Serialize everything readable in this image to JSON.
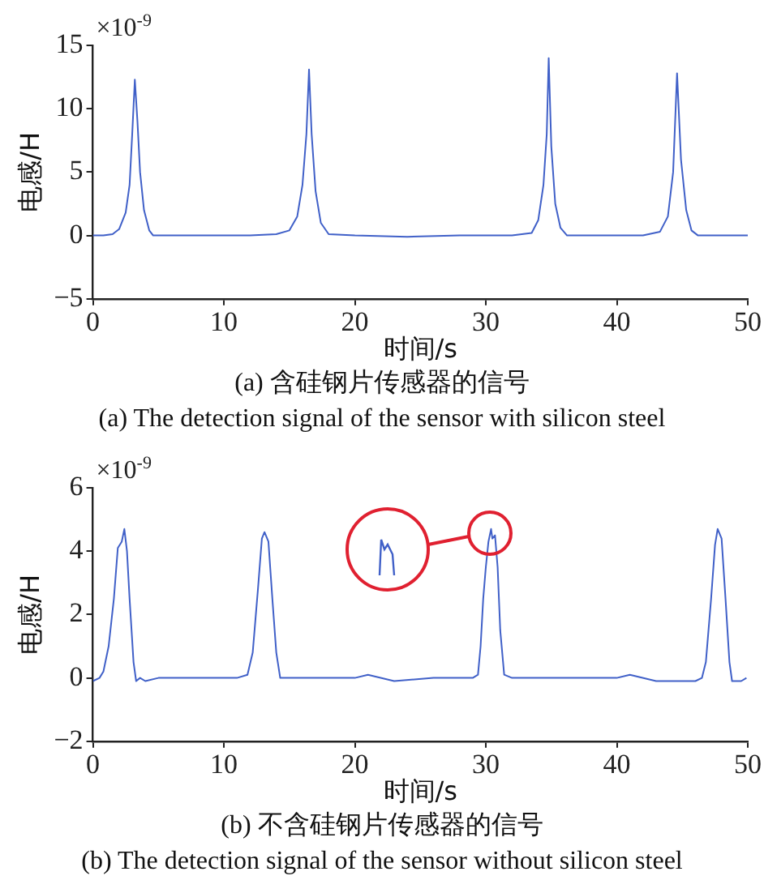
{
  "chart_data": [
    {
      "type": "line",
      "title": "(a) 含硅钢片传感器的信号",
      "subtitle": "(a) The detection signal of the sensor with silicon steel",
      "xlabel": "时间/s",
      "ylabel": "电感/H",
      "annotations": [
        "×10$^{-9}$"
      ],
      "xlim": [
        0,
        50
      ],
      "xticks": [
        0,
        10,
        20,
        30,
        40,
        50
      ],
      "ylim": [
        -5,
        15
      ],
      "yticks": [
        -5,
        0,
        5,
        10,
        15
      ],
      "grid": false,
      "legend": false,
      "marker": "none",
      "line_style": "solid",
      "series": [
        {
          "color": "#4060c8",
          "x": [
            0,
            0.8,
            1.5,
            2.0,
            2.5,
            2.8,
            3.0,
            3.2,
            3.4,
            3.6,
            3.9,
            4.3,
            4.6,
            6,
            8,
            10,
            12,
            14,
            15,
            15.6,
            16,
            16.3,
            16.5,
            16.7,
            17,
            17.4,
            18,
            20,
            24,
            28,
            32,
            33.5,
            34.0,
            34.4,
            34.65,
            34.8,
            35.0,
            35.3,
            35.7,
            36.2,
            40,
            42,
            43.3,
            43.9,
            44.3,
            44.6,
            44.9,
            45.3,
            45.7,
            46.2,
            48,
            50
          ],
          "values": [
            0,
            0,
            0.1,
            0.5,
            1.8,
            4,
            8,
            12.3,
            9,
            5,
            2,
            0.4,
            0,
            0,
            0,
            0,
            0,
            0.1,
            0.4,
            1.5,
            4,
            8,
            13.1,
            8,
            3.5,
            1,
            0.1,
            0,
            -0.1,
            0,
            0,
            0.2,
            1.2,
            4,
            8,
            14,
            7,
            2.5,
            0.6,
            0,
            0,
            0,
            0.3,
            1.5,
            5,
            12.8,
            6,
            2,
            0.4,
            0,
            0,
            0
          ]
        }
      ]
    },
    {
      "type": "line",
      "title": "(b) 不含硅钢片传感器的信号",
      "subtitle": "(b) The detection signal of the sensor without silicon steel",
      "xlabel": "时间/s",
      "ylabel": "电感/H",
      "annotations": [
        "×10$^{-9}$"
      ],
      "xlim": [
        0,
        50
      ],
      "xticks": [
        0,
        10,
        20,
        30,
        40,
        50
      ],
      "ylim": [
        -2,
        6
      ],
      "yticks": [
        -2,
        0,
        2,
        4,
        6
      ],
      "grid": false,
      "legend": false,
      "marker": "none",
      "line_style": "solid",
      "series": [
        {
          "color": "#4060c8",
          "x": [
            0,
            0.5,
            0.8,
            1.2,
            1.6,
            1.9,
            2.2,
            2.4,
            2.6,
            2.8,
            3.1,
            3.3,
            3.6,
            4,
            5,
            7,
            9,
            11,
            11.8,
            12.2,
            12.6,
            12.9,
            13.1,
            13.4,
            13.7,
            14.0,
            14.3,
            15,
            16,
            20,
            21,
            23,
            26,
            29,
            29.4,
            29.6,
            29.8,
            30.0,
            30.2,
            30.4,
            30.5,
            30.7,
            30.9,
            31.1,
            31.4,
            32,
            36,
            40,
            41,
            43,
            46,
            46.5,
            46.8,
            47.2,
            47.5,
            47.7,
            48.0,
            48.3,
            48.6,
            48.8,
            49.5,
            49.9
          ],
          "values": [
            -0.1,
            0,
            0.2,
            1,
            2.5,
            4.1,
            4.3,
            4.7,
            4.0,
            2.5,
            0.5,
            -0.1,
            0,
            -0.1,
            0,
            0,
            0,
            0,
            0.1,
            0.8,
            2.8,
            4.4,
            4.6,
            4.3,
            2.5,
            0.8,
            0,
            0,
            0,
            0,
            0.1,
            -0.1,
            0,
            0,
            0.1,
            1.0,
            2.5,
            3.5,
            4.3,
            4.7,
            4.4,
            4.5,
            3.5,
            1.5,
            0.1,
            0,
            0,
            0,
            0.1,
            -0.1,
            -0.1,
            0,
            0.5,
            2.5,
            4.2,
            4.7,
            4.4,
            2.5,
            0.5,
            -0.1,
            -0.1,
            0
          ]
        }
      ]
    }
  ]
}
